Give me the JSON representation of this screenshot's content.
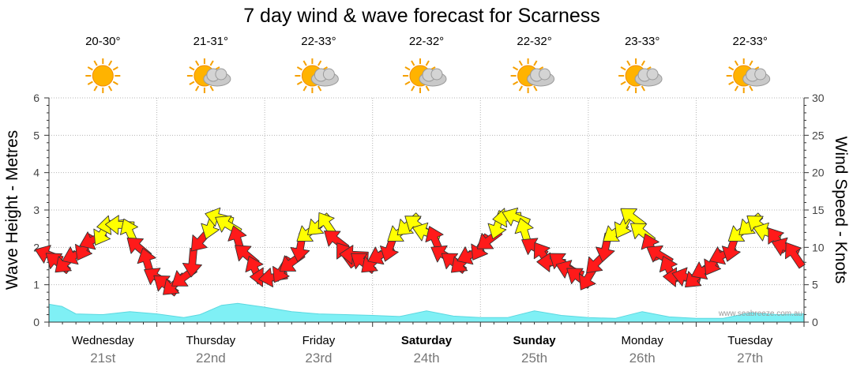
{
  "chart_data": {
    "type": "area",
    "title": "7 day wind & wave forecast for Scarness",
    "y_left_label": "Wave Height - Metres",
    "y_right_label": "Wind Speed - Knots",
    "y_left_ticks": [
      "0",
      "1",
      "2",
      "3",
      "4",
      "5",
      "6"
    ],
    "y_right_ticks": [
      "0",
      "5",
      "10",
      "15",
      "20",
      "25",
      "30"
    ],
    "ylim_left": [
      0,
      6
    ],
    "ylim_right": [
      0,
      30
    ],
    "grid": true,
    "watermark": "www.seabreeze.com.au",
    "days": [
      {
        "name": "Wednesday",
        "date": "21st",
        "temp": "20-30°",
        "bold": false,
        "weather": "sun-icon"
      },
      {
        "name": "Thursday",
        "date": "22nd",
        "temp": "21-31°",
        "bold": false,
        "weather": "partly-cloudy-icon"
      },
      {
        "name": "Friday",
        "date": "23rd",
        "temp": "22-33°",
        "bold": false,
        "weather": "partly-cloudy-icon"
      },
      {
        "name": "Saturday",
        "date": "24th",
        "temp": "22-32°",
        "bold": true,
        "weather": "partly-cloudy-icon"
      },
      {
        "name": "Sunday",
        "date": "25th",
        "temp": "22-32°",
        "bold": true,
        "weather": "partly-cloudy-icon"
      },
      {
        "name": "Monday",
        "date": "26th",
        "temp": "23-33°",
        "bold": false,
        "weather": "partly-cloudy-icon"
      },
      {
        "name": "Tuesday",
        "date": "27th",
        "temp": "22-33°",
        "bold": false,
        "weather": "partly-cloudy-icon"
      }
    ],
    "series": [
      {
        "values_kind": "wave_height_m",
        "x_days": [
          0,
          0.12,
          0.25,
          0.5,
          0.75,
          1,
          1.25,
          1.4,
          1.6,
          1.75,
          2,
          2.25,
          2.5,
          2.75,
          3,
          3.25,
          3.5,
          3.75,
          4,
          4.25,
          4.5,
          4.75,
          5,
          5.25,
          5.5,
          5.75,
          6,
          6.25,
          6.5,
          6.75,
          7
        ],
        "values": [
          0.48,
          0.42,
          0.22,
          0.2,
          0.28,
          0.22,
          0.12,
          0.2,
          0.45,
          0.5,
          0.4,
          0.28,
          0.22,
          0.2,
          0.18,
          0.15,
          0.3,
          0.16,
          0.12,
          0.12,
          0.3,
          0.18,
          0.12,
          0.1,
          0.28,
          0.14,
          0.1,
          0.1,
          0.25,
          0.2,
          0.22
        ]
      },
      {
        "values_kind": "wind_speed_knots",
        "x_days": [
          0,
          0.08,
          0.16,
          0.25,
          0.33,
          0.41,
          0.5,
          0.58,
          0.66,
          0.75,
          0.83,
          0.91,
          1,
          1.08,
          1.16,
          1.25,
          1.33,
          1.41,
          1.5,
          1.58,
          1.66,
          1.75,
          1.83,
          1.91,
          2,
          2.08,
          2.16,
          2.25,
          2.33,
          2.41,
          2.5,
          2.58,
          2.66,
          2.75,
          2.83,
          2.91,
          3,
          3.08,
          3.16,
          3.25,
          3.33,
          3.41,
          3.5,
          3.58,
          3.66,
          3.75,
          3.83,
          3.91,
          4,
          4.08,
          4.16,
          4.25,
          4.33,
          4.41,
          4.5,
          4.58,
          4.66,
          4.75,
          4.83,
          4.91,
          5,
          5.08,
          5.16,
          5.25,
          5.33,
          5.41,
          5.5,
          5.58,
          5.66,
          5.75,
          5.83,
          5.91,
          6,
          6.08,
          6.16,
          6.25,
          6.33,
          6.41,
          6.5,
          6.58,
          6.66,
          6.75,
          6.83,
          6.91
        ],
        "values": [
          9,
          8,
          8,
          9,
          10,
          11,
          12,
          13,
          13,
          12,
          10,
          8,
          6,
          5,
          5,
          6,
          8,
          11,
          13,
          14,
          13,
          11,
          9,
          7,
          6,
          6,
          7,
          8,
          10,
          12,
          13,
          13,
          11,
          9,
          9,
          8,
          8,
          9,
          10,
          12,
          13,
          13,
          12,
          11,
          9,
          8,
          8,
          9,
          10,
          11,
          13,
          14,
          14,
          12,
          10,
          9,
          8,
          8,
          7,
          6,
          6,
          8,
          10,
          12,
          13,
          14,
          12,
          10,
          9,
          7,
          6,
          6,
          6,
          7,
          8,
          9,
          10,
          12,
          13,
          13,
          12,
          11,
          10,
          9
        ]
      }
    ]
  }
}
